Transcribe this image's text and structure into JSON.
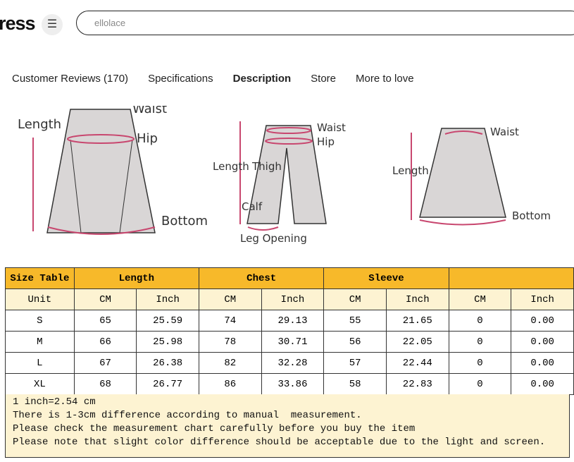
{
  "header": {
    "logo": "ress",
    "search": "ellolace"
  },
  "tabs": [
    "Customer Reviews (170)",
    "Specifications",
    "Description",
    "Store",
    "More to love"
  ],
  "diagrams": [
    {
      "labels": [
        "Waist",
        "Length",
        "Hip",
        "Bottom"
      ]
    },
    {
      "labels": [
        "Waist",
        "Hip",
        "Length",
        "Thigh",
        "Calf",
        "Leg Opening"
      ]
    },
    {
      "labels": [
        "Waist",
        "Length",
        "Bottom"
      ]
    }
  ],
  "table": {
    "header": [
      "Size Table",
      "Length",
      "Chest",
      "Sleeve"
    ],
    "units": [
      "Unit",
      "CM",
      "Inch",
      "CM",
      "Inch",
      "CM",
      "Inch",
      "CM",
      "Inch"
    ],
    "rows": [
      [
        "S",
        "65",
        "25.59",
        "74",
        "29.13",
        "55",
        "21.65",
        "0",
        "0.00"
      ],
      [
        "M",
        "66",
        "25.98",
        "78",
        "30.71",
        "56",
        "22.05",
        "0",
        "0.00"
      ],
      [
        "L",
        "67",
        "26.38",
        "82",
        "32.28",
        "57",
        "22.44",
        "0",
        "0.00"
      ],
      [
        "XL",
        "68",
        "26.77",
        "86",
        "33.86",
        "58",
        "22.83",
        "0",
        "0.00"
      ]
    ]
  },
  "notes": [
    "1 inch=2.54 cm",
    "There is 1-3cm difference according to manual  measurement.",
    "Please check the measurement chart carefully before you buy the item",
    "Please note that slight color difference should be acceptable due to the light and screen."
  ]
}
